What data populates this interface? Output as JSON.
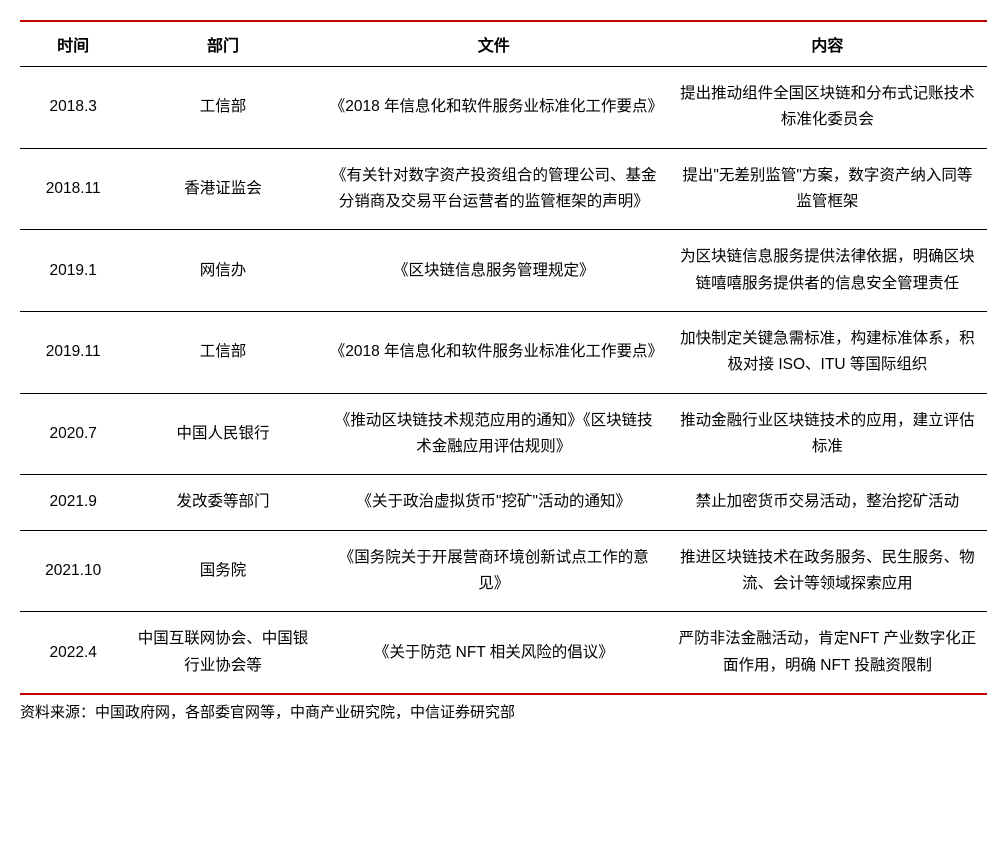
{
  "table": {
    "headers": {
      "time": "时间",
      "department": "部门",
      "document": "文件",
      "content": "内容"
    },
    "rows": [
      {
        "time": "2018.3",
        "department": "工信部",
        "document": "《2018 年信息化和软件服务业标准化工作要点》",
        "content": "提出推动组件全国区块链和分布式记账技术标准化委员会"
      },
      {
        "time": "2018.11",
        "department": "香港证监会",
        "document": "《有关针对数字资产投资组合的管理公司、基金分销商及交易平台运营者的监管框架的声明》",
        "content": "提出\"无差别监管\"方案，数字资产纳入同等监管框架"
      },
      {
        "time": "2019.1",
        "department": "网信办",
        "document": "《区块链信息服务管理规定》",
        "content": "为区块链信息服务提供法律依据，明确区块链嘻嘻服务提供者的信息安全管理责任"
      },
      {
        "time": "2019.11",
        "department": "工信部",
        "document": "《2018 年信息化和软件服务业标准化工作要点》",
        "content": "加快制定关键急需标准，构建标准体系，积极对接 ISO、ITU 等国际组织"
      },
      {
        "time": "2020.7",
        "department": "中国人民银行",
        "document": "《推动区块链技术规范应用的通知》《区块链技术金融应用评估规则》",
        "content": "推动金融行业区块链技术的应用，建立评估标准"
      },
      {
        "time": "2021.9",
        "department": "发改委等部门",
        "document": "《关于政治虚拟货币\"挖矿\"活动的通知》",
        "content": "禁止加密货币交易活动，整治挖矿活动"
      },
      {
        "time": "2021.10",
        "department": "国务院",
        "document": "《国务院关于开展营商环境创新试点工作的意见》",
        "content": "推进区块链技术在政务服务、民生服务、物流、会计等领域探索应用"
      },
      {
        "time": "2022.4",
        "department": "中国互联网协会、中国银行业协会等",
        "document": "《关于防范 NFT 相关风险的倡议》",
        "content": "严防非法金融活动，肯定NFT 产业数字化正面作用，明确 NFT 投融资限制"
      }
    ]
  },
  "source_note": "资料来源：中国政府网，各部委官网等，中商产业研究院，中信证券研究部",
  "styling": {
    "border_top_color": "#c00000",
    "border_bottom_color": "#c00000",
    "header_border_color": "#000000",
    "row_border_color": "#000000",
    "background_color": "#ffffff",
    "text_color": "#000000",
    "header_fontsize": 16,
    "cell_fontsize": 15.5,
    "source_fontsize": 15,
    "column_widths": {
      "time": "11%",
      "department": "20%",
      "document": "36%",
      "content": "33%"
    }
  }
}
